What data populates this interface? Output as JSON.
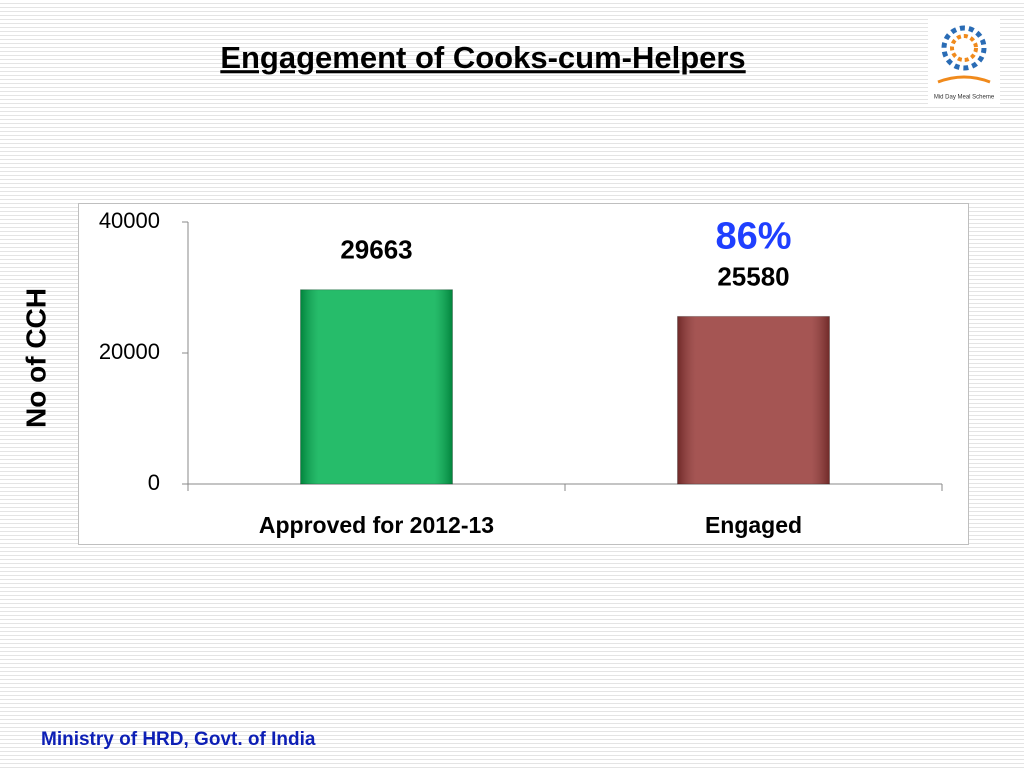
{
  "chart_data": {
    "type": "bar",
    "title": "Engagement of Cooks-cum-Helpers",
    "y_label": "No of CCH",
    "categories": [
      "Approved for 2012-13",
      "Engaged"
    ],
    "values": [
      29663,
      25580
    ],
    "colors": [
      "#00b050",
      "#953735"
    ],
    "annotation": {
      "text": "86%",
      "category": 1,
      "color": "#1f3fff"
    },
    "ylim": [
      0,
      40000
    ],
    "yticks": [
      0,
      20000,
      40000
    ],
    "grid": false
  },
  "logo": {
    "text": "Mid Day Meal Scheme"
  },
  "footer": "Ministry of HRD, Govt. of India"
}
